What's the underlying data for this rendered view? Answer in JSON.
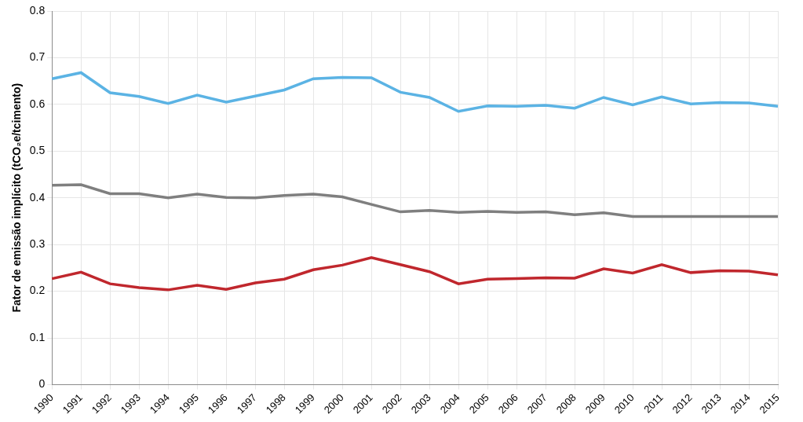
{
  "chart_data": {
    "type": "line",
    "y_label": "Fator de emissão implícito (tCO₂e/tcimento)",
    "categories": [
      "1990",
      "1991",
      "1992",
      "1993",
      "1994",
      "1995",
      "1996",
      "1997",
      "1998",
      "1999",
      "2000",
      "2001",
      "2002",
      "2003",
      "2004",
      "2005",
      "2006",
      "2007",
      "2008",
      "2009",
      "2010",
      "2011",
      "2012",
      "2013",
      "2014",
      "2015"
    ],
    "series": [
      {
        "color": "#5bb3e4",
        "values": [
          0.655,
          0.668,
          0.625,
          0.617,
          0.602,
          0.62,
          0.605,
          0.618,
          0.631,
          0.655,
          0.658,
          0.657,
          0.626,
          0.615,
          0.585,
          0.597,
          0.596,
          0.598,
          0.592,
          0.615,
          0.599,
          0.616,
          0.601,
          0.604,
          0.603,
          0.596
        ]
      },
      {
        "color": "#7f7f7f",
        "values": [
          0.427,
          0.428,
          0.409,
          0.409,
          0.4,
          0.408,
          0.401,
          0.4,
          0.405,
          0.408,
          0.402,
          0.386,
          0.37,
          0.373,
          0.369,
          0.371,
          0.369,
          0.37,
          0.364,
          0.368,
          0.36,
          0.36,
          0.36,
          0.36,
          0.36,
          0.36
        ]
      },
      {
        "color": "#c0272d",
        "values": [
          0.227,
          0.241,
          0.216,
          0.208,
          0.203,
          0.213,
          0.204,
          0.218,
          0.226,
          0.246,
          0.256,
          0.272,
          0.257,
          0.242,
          0.216,
          0.226,
          0.227,
          0.229,
          0.228,
          0.248,
          0.239,
          0.257,
          0.24,
          0.244,
          0.243,
          0.235
        ]
      }
    ],
    "ylim": [
      0,
      0.8
    ],
    "yticks": [
      0,
      0.1,
      0.2,
      0.3,
      0.4,
      0.5,
      0.6,
      0.7,
      0.8
    ],
    "grid": true,
    "legend": false
  }
}
